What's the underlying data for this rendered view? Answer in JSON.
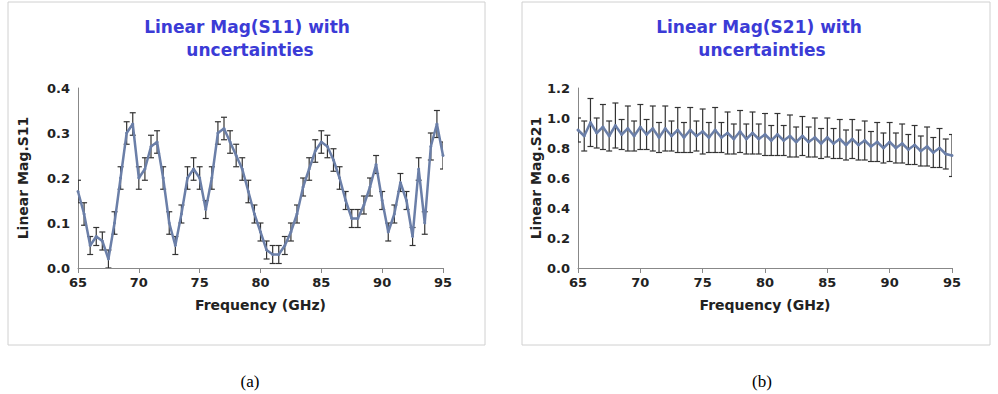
{
  "chart_data": [
    {
      "type": "line",
      "title": "Linear Mag(S11) with uncertainties",
      "caption": "(a)",
      "x_label": "Frequency (GHz)",
      "y_label": "Linear Mag.S11",
      "x": [
        65,
        65.5,
        66,
        66.5,
        67,
        67.5,
        68,
        68.5,
        69,
        69.5,
        70,
        70.5,
        71,
        71.5,
        72,
        72.5,
        73,
        73.5,
        74,
        74.5,
        75,
        75.5,
        76,
        76.5,
        77,
        77.5,
        78,
        78.5,
        79,
        79.5,
        80,
        80.5,
        81,
        81.5,
        82,
        82.5,
        83,
        83.5,
        84,
        84.5,
        85,
        85.5,
        86,
        86.5,
        87,
        87.5,
        88,
        88.5,
        89,
        89.5,
        90,
        90.5,
        91,
        91.5,
        92,
        92.5,
        93,
        93.5,
        94,
        94.5,
        95
      ],
      "values": [
        0.17,
        0.12,
        0.05,
        0.07,
        0.06,
        0.02,
        0.1,
        0.2,
        0.3,
        0.32,
        0.2,
        0.22,
        0.27,
        0.28,
        0.2,
        0.1,
        0.05,
        0.12,
        0.2,
        0.22,
        0.2,
        0.13,
        0.2,
        0.3,
        0.31,
        0.28,
        0.25,
        0.22,
        0.17,
        0.12,
        0.08,
        0.04,
        0.03,
        0.03,
        0.05,
        0.08,
        0.12,
        0.18,
        0.22,
        0.26,
        0.28,
        0.27,
        0.24,
        0.2,
        0.15,
        0.11,
        0.11,
        0.14,
        0.18,
        0.23,
        0.15,
        0.08,
        0.12,
        0.19,
        0.15,
        0.07,
        0.22,
        0.1,
        0.27,
        0.32,
        0.25
      ],
      "errors": [
        0.025,
        0.025,
        0.02,
        0.02,
        0.02,
        0.02,
        0.025,
        0.025,
        0.025,
        0.025,
        0.025,
        0.025,
        0.025,
        0.025,
        0.025,
        0.025,
        0.02,
        0.02,
        0.025,
        0.025,
        0.025,
        0.02,
        0.025,
        0.025,
        0.025,
        0.025,
        0.025,
        0.025,
        0.025,
        0.02,
        0.02,
        0.02,
        0.02,
        0.02,
        0.02,
        0.02,
        0.02,
        0.02,
        0.025,
        0.025,
        0.025,
        0.025,
        0.025,
        0.025,
        0.02,
        0.02,
        0.02,
        0.02,
        0.02,
        0.02,
        0.02,
        0.02,
        0.02,
        0.02,
        0.02,
        0.02,
        0.025,
        0.025,
        0.03,
        0.03,
        0.03
      ],
      "color": "#6b7fa8",
      "error_color": "#333333",
      "xlim": [
        65,
        95
      ],
      "xticks": [
        65,
        70,
        75,
        80,
        85,
        90,
        95
      ],
      "ylim": [
        0,
        0.4
      ],
      "yticks": [
        {
          "value": 0,
          "label": "0.0"
        },
        0.1,
        0.2,
        0.3,
        0.4
      ],
      "grid": false
    },
    {
      "type": "line",
      "title": "Linear Mag(S21) with uncertainties",
      "caption": "(b)",
      "x_label": "Frequency (GHz)",
      "y_label": "Linear Mag.S21",
      "x": [
        65,
        65.5,
        66,
        66.5,
        67,
        67.5,
        68,
        68.5,
        69,
        69.5,
        70,
        70.5,
        71,
        71.5,
        72,
        72.5,
        73,
        73.5,
        74,
        74.5,
        75,
        75.5,
        76,
        76.5,
        77,
        77.5,
        78,
        78.5,
        79,
        79.5,
        80,
        80.5,
        81,
        81.5,
        82,
        82.5,
        83,
        83.5,
        84,
        84.5,
        85,
        85.5,
        86,
        86.5,
        87,
        87.5,
        88,
        88.5,
        89,
        89.5,
        90,
        90.5,
        91,
        91.5,
        92,
        92.5,
        93,
        93.5,
        94,
        94.5,
        95
      ],
      "values": [
        0.92,
        0.88,
        0.97,
        0.9,
        0.94,
        0.88,
        0.95,
        0.89,
        0.93,
        0.88,
        0.94,
        0.89,
        0.93,
        0.87,
        0.93,
        0.88,
        0.92,
        0.87,
        0.92,
        0.88,
        0.91,
        0.87,
        0.92,
        0.87,
        0.9,
        0.86,
        0.91,
        0.86,
        0.9,
        0.86,
        0.89,
        0.85,
        0.89,
        0.85,
        0.88,
        0.84,
        0.88,
        0.84,
        0.87,
        0.83,
        0.87,
        0.83,
        0.86,
        0.82,
        0.86,
        0.82,
        0.85,
        0.81,
        0.84,
        0.8,
        0.84,
        0.8,
        0.83,
        0.79,
        0.82,
        0.78,
        0.81,
        0.77,
        0.8,
        0.76,
        0.75
      ],
      "errors": [
        0.08,
        0.1,
        0.16,
        0.1,
        0.15,
        0.1,
        0.15,
        0.1,
        0.15,
        0.1,
        0.15,
        0.1,
        0.15,
        0.1,
        0.15,
        0.1,
        0.15,
        0.1,
        0.15,
        0.1,
        0.15,
        0.1,
        0.15,
        0.1,
        0.14,
        0.1,
        0.14,
        0.1,
        0.14,
        0.1,
        0.14,
        0.1,
        0.14,
        0.1,
        0.14,
        0.1,
        0.13,
        0.1,
        0.13,
        0.1,
        0.13,
        0.1,
        0.13,
        0.1,
        0.13,
        0.1,
        0.13,
        0.1,
        0.13,
        0.1,
        0.13,
        0.1,
        0.13,
        0.1,
        0.13,
        0.1,
        0.13,
        0.1,
        0.13,
        0.1,
        0.14
      ],
      "color": "#6b7fa8",
      "error_color": "#333333",
      "xlim": [
        65,
        95
      ],
      "xticks": [
        65,
        70,
        75,
        80,
        85,
        90,
        95
      ],
      "ylim": [
        0,
        1.2
      ],
      "yticks": [
        {
          "value": 0,
          "label": "0.0"
        },
        0.2,
        0.4,
        0.6,
        0.8,
        {
          "value": 1,
          "label": "1.0"
        },
        1.2
      ],
      "grid": false
    }
  ]
}
